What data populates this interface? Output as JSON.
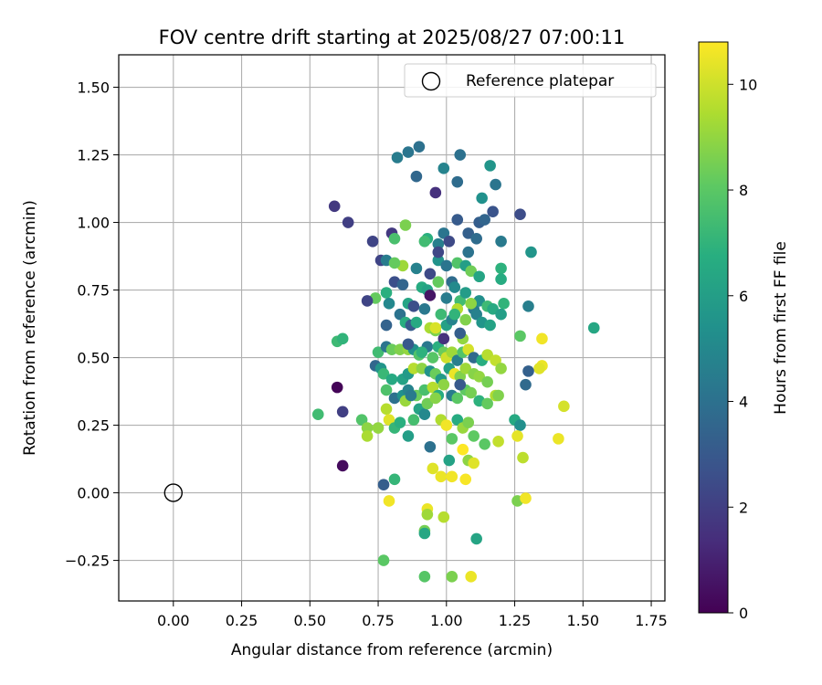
{
  "chart_data": {
    "type": "scatter",
    "title": "FOV centre drift starting at 2025/08/27 07:00:11",
    "xlabel": "Angular distance from reference (arcmin)",
    "ylabel": "Rotation from reference (arcmin)",
    "xlim": [
      -0.2,
      1.8
    ],
    "ylim": [
      -0.4,
      1.62
    ],
    "xticks": [
      0.0,
      0.25,
      0.5,
      0.75,
      1.0,
      1.25,
      1.5,
      1.75
    ],
    "xtick_labels": [
      "0.00",
      "0.25",
      "0.50",
      "0.75",
      "1.00",
      "1.25",
      "1.50",
      "1.75"
    ],
    "yticks": [
      -0.25,
      0.0,
      0.25,
      0.5,
      0.75,
      1.0,
      1.25,
      1.5
    ],
    "ytick_labels": [
      "−0.25",
      "0.00",
      "0.25",
      "0.50",
      "0.75",
      "1.00",
      "1.25",
      "1.50"
    ],
    "grid": true,
    "legend_position": "top-right",
    "legend": [
      {
        "label": "Reference platepar",
        "marker": "open-circle"
      }
    ],
    "reference_point": {
      "x": 0.0,
      "y": 0.0
    },
    "colorbar": {
      "label": "Hours from first FF file",
      "colormap": "viridis",
      "range": [
        0,
        10.8
      ],
      "ticks": [
        0,
        2,
        4,
        6,
        8,
        10
      ],
      "tick_labels": [
        "0",
        "2",
        "4",
        "6",
        "8",
        "10"
      ]
    },
    "series": [
      {
        "points": [
          [
            0.6,
            0.39,
            0.1
          ],
          [
            0.62,
            0.1,
            0.3
          ],
          [
            0.59,
            1.06,
            1.8
          ],
          [
            0.64,
            1.0,
            2.0
          ],
          [
            0.62,
            0.3,
            2.0
          ],
          [
            0.73,
            0.93,
            2.2
          ],
          [
            0.8,
            0.96,
            1.8
          ],
          [
            0.76,
            0.86,
            2.2
          ],
          [
            0.82,
            1.24,
            4.5
          ],
          [
            0.86,
            1.26,
            4.2
          ],
          [
            0.9,
            1.28,
            4.0
          ],
          [
            0.89,
            1.17,
            3.6
          ],
          [
            0.96,
            1.11,
            1.5
          ],
          [
            0.99,
            1.2,
            4.8
          ],
          [
            1.05,
            1.25,
            4.0
          ],
          [
            1.04,
            1.15,
            3.8
          ],
          [
            1.13,
            1.09,
            5.4
          ],
          [
            1.16,
            1.21,
            5.6
          ],
          [
            1.18,
            1.14,
            4.2
          ],
          [
            1.12,
            1.0,
            3.2
          ],
          [
            1.14,
            1.01,
            3.5
          ],
          [
            1.17,
            1.04,
            2.8
          ],
          [
            1.27,
            1.03,
            2.5
          ],
          [
            1.2,
            0.93,
            4.4
          ],
          [
            1.31,
            0.89,
            5.6
          ],
          [
            1.04,
            1.01,
            3.1
          ],
          [
            0.99,
            0.96,
            4.2
          ],
          [
            1.08,
            0.96,
            3.3
          ],
          [
            1.11,
            0.94,
            3.8
          ],
          [
            0.97,
            0.92,
            4.6
          ],
          [
            1.01,
            0.93,
            2.4
          ],
          [
            0.93,
            0.94,
            6.8
          ],
          [
            0.92,
            0.93,
            7.4
          ],
          [
            0.85,
            0.99,
            8.6
          ],
          [
            0.81,
            0.94,
            7.6
          ],
          [
            0.78,
            0.86,
            4.5
          ],
          [
            0.84,
            0.84,
            9.2
          ],
          [
            0.89,
            0.83,
            4.7
          ],
          [
            0.94,
            0.81,
            2.4
          ],
          [
            0.97,
            0.86,
            5.5
          ],
          [
            1.0,
            0.84,
            4.2
          ],
          [
            1.04,
            0.85,
            7.8
          ],
          [
            1.07,
            0.84,
            6.0
          ],
          [
            1.09,
            0.82,
            8.4
          ],
          [
            1.12,
            0.8,
            6.3
          ],
          [
            1.2,
            0.83,
            6.9
          ],
          [
            1.2,
            0.79,
            6.6
          ],
          [
            0.81,
            0.78,
            2.6
          ],
          [
            0.84,
            0.77,
            3.5
          ],
          [
            0.78,
            0.74,
            6.8
          ],
          [
            0.74,
            0.72,
            8.2
          ],
          [
            0.71,
            0.71,
            2.2
          ],
          [
            0.79,
            0.7,
            5.0
          ],
          [
            0.86,
            0.7,
            6.3
          ],
          [
            0.91,
            0.76,
            6.6
          ],
          [
            0.93,
            0.75,
            6.2
          ],
          [
            0.97,
            0.78,
            8.2
          ],
          [
            1.0,
            0.72,
            4.5
          ],
          [
            1.02,
            0.78,
            3.8
          ],
          [
            1.03,
            0.76,
            5.1
          ],
          [
            1.05,
            0.71,
            7.4
          ],
          [
            1.07,
            0.74,
            5.9
          ],
          [
            1.1,
            0.68,
            4.4
          ],
          [
            1.12,
            0.71,
            5.3
          ],
          [
            1.15,
            0.69,
            7.3
          ],
          [
            1.17,
            0.68,
            6.5
          ],
          [
            1.21,
            0.7,
            7.0
          ],
          [
            1.3,
            0.69,
            4.6
          ],
          [
            0.78,
            0.62,
            3.4
          ],
          [
            0.83,
            0.66,
            4.1
          ],
          [
            0.85,
            0.63,
            6.7
          ],
          [
            0.87,
            0.62,
            3.1
          ],
          [
            0.89,
            0.63,
            6.5
          ],
          [
            0.92,
            0.68,
            4.3
          ],
          [
            0.94,
            0.61,
            9.4
          ],
          [
            0.96,
            0.6,
            8.6
          ],
          [
            0.98,
            0.66,
            7.3
          ],
          [
            1.0,
            0.62,
            6.1
          ],
          [
            1.02,
            0.64,
            4.8
          ],
          [
            1.04,
            0.68,
            9.6
          ],
          [
            1.07,
            0.64,
            8.7
          ],
          [
            1.09,
            0.7,
            8.9
          ],
          [
            1.11,
            0.66,
            4.7
          ],
          [
            1.13,
            0.63,
            5.6
          ],
          [
            1.16,
            0.62,
            6.2
          ],
          [
            1.2,
            0.66,
            6.0
          ],
          [
            1.27,
            0.58,
            8.0
          ],
          [
            1.54,
            0.61,
            6.4
          ],
          [
            0.6,
            0.56,
            7.3
          ],
          [
            0.62,
            0.57,
            7.0
          ],
          [
            0.75,
            0.52,
            7.4
          ],
          [
            0.78,
            0.54,
            4.2
          ],
          [
            0.8,
            0.53,
            8.3
          ],
          [
            0.83,
            0.53,
            8.7
          ],
          [
            0.86,
            0.53,
            9.0
          ],
          [
            0.88,
            0.53,
            5.4
          ],
          [
            0.9,
            0.51,
            7.8
          ],
          [
            0.93,
            0.54,
            4.3
          ],
          [
            0.95,
            0.5,
            7.9
          ],
          [
            0.97,
            0.54,
            6.8
          ],
          [
            0.99,
            0.52,
            8.3
          ],
          [
            1.0,
            0.5,
            10.0
          ],
          [
            1.02,
            0.52,
            9.2
          ],
          [
            1.04,
            0.49,
            4.6
          ],
          [
            1.06,
            0.52,
            7.8
          ],
          [
            1.08,
            0.53,
            10.1
          ],
          [
            1.1,
            0.5,
            3.7
          ],
          [
            1.13,
            0.49,
            6.7
          ],
          [
            1.15,
            0.51,
            9.6
          ],
          [
            1.18,
            0.49,
            9.8
          ],
          [
            1.2,
            0.46,
            9.0
          ],
          [
            1.35,
            0.57,
            10.6
          ],
          [
            1.35,
            0.47,
            10.5
          ],
          [
            1.34,
            0.46,
            10.3
          ],
          [
            1.3,
            0.45,
            3.3
          ],
          [
            0.74,
            0.47,
            3.6
          ],
          [
            0.76,
            0.46,
            5.6
          ],
          [
            0.77,
            0.44,
            7.2
          ],
          [
            0.8,
            0.42,
            6.5
          ],
          [
            0.84,
            0.42,
            6.2
          ],
          [
            0.86,
            0.44,
            5.8
          ],
          [
            0.88,
            0.46,
            9.6
          ],
          [
            0.91,
            0.46,
            8.9
          ],
          [
            0.94,
            0.45,
            5.5
          ],
          [
            0.96,
            0.44,
            8.3
          ],
          [
            0.98,
            0.42,
            5.8
          ],
          [
            1.01,
            0.46,
            6.1
          ],
          [
            1.03,
            0.44,
            10.5
          ],
          [
            1.05,
            0.43,
            8.7
          ],
          [
            1.07,
            0.46,
            9.2
          ],
          [
            1.1,
            0.44,
            8.8
          ],
          [
            1.12,
            0.43,
            9.0
          ],
          [
            1.15,
            0.41,
            8.5
          ],
          [
            1.18,
            0.36,
            9.5
          ],
          [
            1.29,
            0.4,
            3.7
          ],
          [
            0.78,
            0.38,
            7.7
          ],
          [
            0.81,
            0.35,
            4.0
          ],
          [
            0.84,
            0.36,
            5.4
          ],
          [
            0.86,
            0.38,
            4.8
          ],
          [
            0.89,
            0.36,
            8.3
          ],
          [
            0.92,
            0.38,
            7.6
          ],
          [
            0.95,
            0.39,
            9.6
          ],
          [
            0.97,
            0.36,
            6.6
          ],
          [
            0.99,
            0.4,
            8.9
          ],
          [
            1.02,
            0.36,
            4.5
          ],
          [
            1.04,
            0.35,
            8.0
          ],
          [
            1.07,
            0.38,
            8.1
          ],
          [
            1.09,
            0.37,
            8.5
          ],
          [
            1.12,
            0.34,
            6.9
          ],
          [
            1.15,
            0.33,
            8.2
          ],
          [
            1.19,
            0.36,
            8.7
          ],
          [
            0.53,
            0.29,
            7.4
          ],
          [
            0.69,
            0.27,
            7.8
          ],
          [
            0.71,
            0.24,
            8.9
          ],
          [
            0.71,
            0.21,
            9.4
          ],
          [
            0.75,
            0.24,
            9.0
          ],
          [
            0.78,
            0.31,
            9.6
          ],
          [
            0.79,
            0.27,
            10.3
          ],
          [
            0.81,
            0.24,
            7.1
          ],
          [
            0.83,
            0.26,
            6.8
          ],
          [
            0.85,
            0.34,
            9.1
          ],
          [
            0.86,
            0.21,
            6.0
          ],
          [
            0.88,
            0.27,
            7.5
          ],
          [
            0.9,
            0.31,
            6.2
          ],
          [
            0.92,
            0.29,
            5.0
          ],
          [
            0.93,
            0.33,
            8.4
          ],
          [
            0.96,
            0.35,
            8.8
          ],
          [
            0.98,
            0.27,
            9.5
          ],
          [
            1.0,
            0.25,
            10.6
          ],
          [
            1.02,
            0.2,
            8.0
          ],
          [
            1.04,
            0.27,
            6.6
          ],
          [
            1.06,
            0.24,
            9.1
          ],
          [
            1.08,
            0.26,
            8.6
          ],
          [
            1.1,
            0.21,
            8.1
          ],
          [
            1.14,
            0.18,
            8.0
          ],
          [
            1.19,
            0.19,
            9.8
          ],
          [
            1.25,
            0.27,
            6.5
          ],
          [
            1.27,
            0.25,
            5.3
          ],
          [
            1.26,
            0.21,
            10.4
          ],
          [
            1.28,
            0.13,
            9.7
          ],
          [
            1.41,
            0.2,
            10.5
          ],
          [
            1.43,
            0.32,
            10.1
          ],
          [
            0.77,
            0.03,
            3.2
          ],
          [
            0.81,
            0.05,
            7.1
          ],
          [
            0.94,
            0.17,
            4.0
          ],
          [
            0.95,
            0.09,
            10.3
          ],
          [
            0.98,
            0.06,
            10.5
          ],
          [
            1.01,
            0.12,
            6.2
          ],
          [
            1.02,
            0.06,
            10.6
          ],
          [
            1.06,
            0.16,
            10.8
          ],
          [
            1.07,
            0.05,
            10.7
          ],
          [
            1.08,
            0.12,
            8.9
          ],
          [
            1.1,
            0.11,
            10.3
          ],
          [
            0.79,
            -0.03,
            10.6
          ],
          [
            0.93,
            -0.06,
            10.5
          ],
          [
            0.93,
            -0.08,
            9.2
          ],
          [
            0.99,
            -0.09,
            9.6
          ],
          [
            1.26,
            -0.03,
            8.6
          ],
          [
            1.29,
            -0.02,
            10.6
          ],
          [
            0.92,
            -0.14,
            8.5
          ],
          [
            0.92,
            -0.15,
            6.4
          ],
          [
            1.11,
            -0.17,
            6.3
          ],
          [
            0.77,
            -0.25,
            8.0
          ],
          [
            0.92,
            -0.31,
            7.9
          ],
          [
            1.02,
            -0.31,
            8.6
          ],
          [
            1.09,
            -0.31,
            10.5
          ],
          [
            0.81,
            0.85,
            8.2
          ],
          [
            0.96,
            0.61,
            10.2
          ],
          [
            1.06,
            0.57,
            9.0
          ],
          [
            0.86,
            0.55,
            3.0
          ],
          [
            0.88,
            0.69,
            2.6
          ],
          [
            0.94,
            0.73,
            0.6
          ],
          [
            0.97,
            0.89,
            2.3
          ],
          [
            0.99,
            0.57,
            1.5
          ],
          [
            1.05,
            0.59,
            3.2
          ],
          [
            1.08,
            0.89,
            4.1
          ],
          [
            1.03,
            0.66,
            7.0
          ],
          [
            0.87,
            0.36,
            4.4
          ],
          [
            0.91,
            0.52,
            6.9
          ],
          [
            1.05,
            0.4,
            3.0
          ]
        ]
      }
    ]
  }
}
